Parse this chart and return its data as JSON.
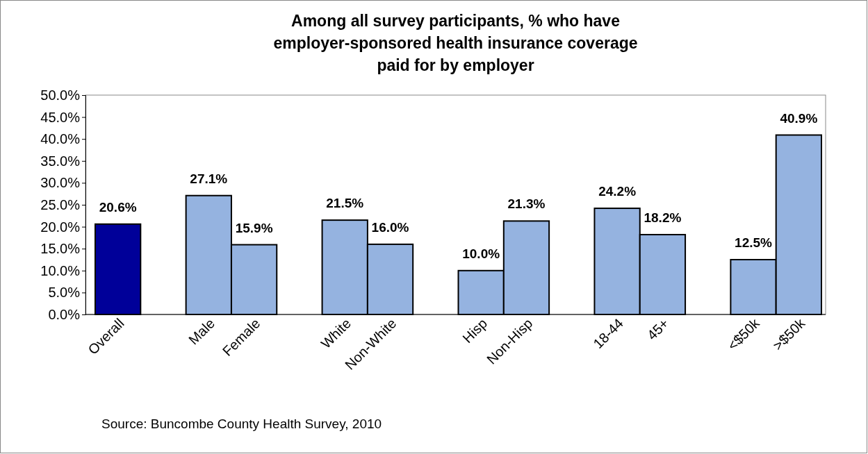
{
  "chart_data": {
    "type": "bar",
    "title": "Among all survey participants, % who have employer-sponsored health insurance coverage paid for by employer",
    "categories": [
      "Overall",
      null,
      "Male",
      "Female",
      null,
      "White",
      "Non-White",
      null,
      "Hisp",
      "Non-Hisp",
      null,
      "18-44",
      "45+",
      null,
      "<$50k",
      ">$50k"
    ],
    "values": [
      20.6,
      null,
      27.1,
      15.9,
      null,
      21.5,
      16.0,
      null,
      10.0,
      21.3,
      null,
      24.2,
      18.2,
      null,
      12.5,
      40.9
    ],
    "colors": [
      "#000099",
      null,
      "#95b3e0",
      "#95b3e0",
      null,
      "#95b3e0",
      "#95b3e0",
      null,
      "#95b3e0",
      "#95b3e0",
      null,
      "#95b3e0",
      "#95b3e0",
      null,
      "#95b3e0",
      "#95b3e0"
    ],
    "value_labels": [
      "20.6%",
      null,
      "27.1%",
      "15.9%",
      null,
      "21.5%",
      "16.0%",
      null,
      "10.0%",
      "21.3%",
      null,
      "24.2%",
      "18.2%",
      null,
      "12.5%",
      "40.9%"
    ],
    "ylim": [
      0,
      50
    ],
    "yticks": [
      {
        "value": 0,
        "label": "0.0%"
      },
      {
        "value": 5,
        "label": "5.0%"
      },
      {
        "value": 10,
        "label": "10.0%"
      },
      {
        "value": 15,
        "label": "15.0%"
      },
      {
        "value": 20,
        "label": "20.0%"
      },
      {
        "value": 25,
        "label": "25.0%"
      },
      {
        "value": 30,
        "label": "30.0%"
      },
      {
        "value": 35,
        "label": "35.0%"
      },
      {
        "value": 40,
        "label": "40.0%"
      },
      {
        "value": 45,
        "label": "45.0%"
      },
      {
        "value": 50,
        "label": "50.0%"
      }
    ],
    "grid": false,
    "annotations": [
      "Source: Buncombe County Health Survey, 2010"
    ]
  }
}
